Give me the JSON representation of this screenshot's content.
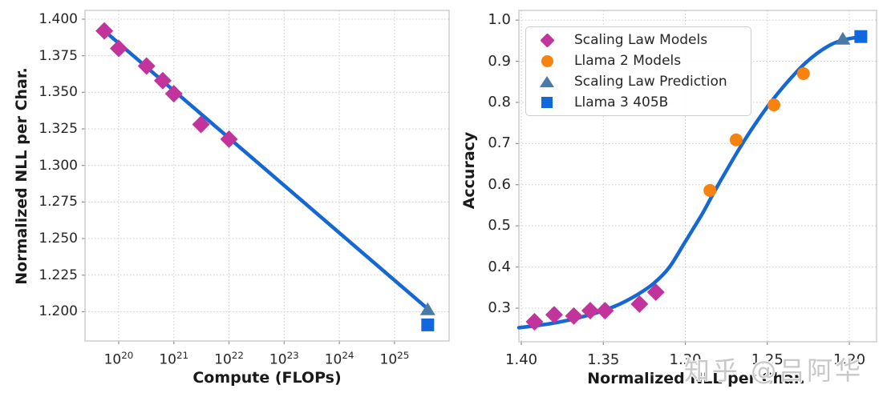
{
  "watermark": {
    "text": "知乎 @吕阿华"
  },
  "colors": {
    "scaling_law_models": "#c2349c",
    "llama2_models": "#f8820e",
    "scaling_law_prediction": "#4a7ba7",
    "llama3_405b": "#1168dc",
    "fit_line": "#1568d4",
    "grid": "#cccccc",
    "spine": "#c5c5c5",
    "tick_mark": "#8f8f8f",
    "tick_text": "#262626",
    "label_text": "#1a1a1a",
    "watermark_text": "#c8c8c8"
  },
  "legend": {
    "items": [
      {
        "label": "Scaling Law Models",
        "marker": "diamond",
        "color": "#c2349c"
      },
      {
        "label": "Llama 2 Models",
        "marker": "circle",
        "color": "#f8820e"
      },
      {
        "label": "Scaling Law Prediction",
        "marker": "triangle",
        "color": "#4a7ba7"
      },
      {
        "label": "Llama 3 405B",
        "marker": "square",
        "color": "#1168dc"
      }
    ]
  },
  "chart_data": [
    {
      "type": "line",
      "title": "",
      "xlabel": "Compute (FLOPs)",
      "ylabel": "Normalized NLL per Char.",
      "xscale": "log",
      "xlim_log10": [
        19.39,
        25.99
      ],
      "ylim": [
        1.18,
        1.406
      ],
      "grid": true,
      "x_tick_exponents": [
        20,
        21,
        22,
        23,
        24,
        25
      ],
      "y_ticks": [
        1.4,
        1.375,
        1.35,
        1.325,
        1.3,
        1.275,
        1.25,
        1.225,
        1.2
      ],
      "y_tick_decimals": 3,
      "series": [
        {
          "name": "Scaling Law Models",
          "marker": "diamond",
          "x": [
            5.5e+19,
            1e+20,
            3.2e+20,
            6.3e+20,
            1e+21,
            3.1e+21,
            1e+22
          ],
          "y": [
            1.392,
            1.38,
            1.368,
            1.358,
            1.349,
            1.328,
            1.318
          ]
        },
        {
          "name": "Scaling Law Prediction",
          "marker": "triangle",
          "x": [
            4e+25
          ],
          "y": [
            1.202
          ]
        },
        {
          "name": "Llama 3 405B",
          "marker": "square",
          "x": [
            4e+25
          ],
          "y": [
            1.191
          ]
        }
      ],
      "fit_line": {
        "x": [
          5.5e+19,
          4e+25
        ],
        "y": [
          1.392,
          1.202
        ]
      }
    },
    {
      "type": "scatter",
      "title": "",
      "xlabel": "Normalized NLL per Char.",
      "ylabel": "Accuracy",
      "x_reversed": true,
      "xlim": [
        1.4015,
        1.1834
      ],
      "ylim": [
        0.2183,
        1.0236
      ],
      "grid": true,
      "x_ticks": [
        1.4,
        1.35,
        1.3,
        1.25,
        1.2
      ],
      "x_tick_decimals": 2,
      "y_ticks": [
        1.0,
        0.9,
        0.8,
        0.7,
        0.6,
        0.5,
        0.4,
        0.3
      ],
      "y_tick_decimals": 1,
      "series": [
        {
          "name": "Scaling Law Models",
          "marker": "diamond",
          "x": [
            1.392,
            1.38,
            1.368,
            1.358,
            1.349,
            1.328,
            1.318
          ],
          "y": [
            0.267,
            0.284,
            0.281,
            0.294,
            0.294,
            0.31,
            0.339
          ]
        },
        {
          "name": "Llama 2 Models",
          "marker": "circle",
          "x": [
            1.285,
            1.269,
            1.246,
            1.228
          ],
          "y": [
            0.586,
            0.709,
            0.794,
            0.87
          ]
        },
        {
          "name": "Scaling Law Prediction",
          "marker": "triangle",
          "x": [
            1.204
          ],
          "y": [
            0.956
          ]
        },
        {
          "name": "Llama 3 405B",
          "marker": "square",
          "x": [
            1.193
          ],
          "y": [
            0.96
          ]
        }
      ],
      "sigmoid_fit": {
        "points": [
          [
            1.4015,
            0.2525
          ],
          [
            1.39,
            0.258
          ],
          [
            1.38,
            0.264
          ],
          [
            1.37,
            0.272
          ],
          [
            1.36,
            0.282
          ],
          [
            1.35,
            0.294
          ],
          [
            1.34,
            0.31
          ],
          [
            1.33,
            0.331
          ],
          [
            1.32,
            0.358
          ],
          [
            1.31,
            0.398
          ],
          [
            1.3,
            0.462
          ],
          [
            1.29,
            0.527
          ],
          [
            1.283,
            0.578
          ],
          [
            1.275,
            0.634
          ],
          [
            1.267,
            0.688
          ],
          [
            1.259,
            0.738
          ],
          [
            1.251,
            0.784
          ],
          [
            1.243,
            0.825
          ],
          [
            1.235,
            0.862
          ],
          [
            1.227,
            0.895
          ],
          [
            1.219,
            0.921
          ],
          [
            1.211,
            0.941
          ],
          [
            1.204,
            0.952
          ]
        ],
        "end_segment_to": [
          1.193,
          0.96
        ]
      }
    }
  ]
}
